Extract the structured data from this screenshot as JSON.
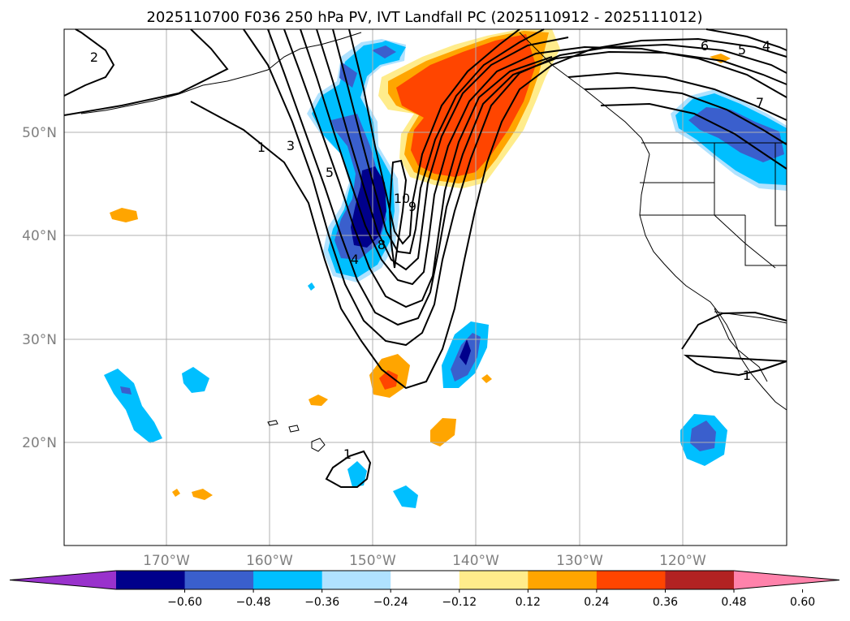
{
  "title": "2025110700 F036 250 hPa PV, IVT Landfall PC (2025110912 - 2025111012)",
  "lat_ticks": [
    "50°N",
    "40°N",
    "30°N",
    "20°N"
  ],
  "lon_ticks": [
    "170°W",
    "160°W",
    "150°W",
    "140°W",
    "130°W",
    "120°W"
  ],
  "colorbar": {
    "ticks": [
      "−0.60",
      "−0.48",
      "−0.36",
      "−0.24",
      "−0.12",
      "0.12",
      "0.24",
      "0.36",
      "0.48",
      "0.60"
    ],
    "colors": [
      "#9932cc",
      "#00008b",
      "#3a5fcd",
      "#00bfff",
      "#b0e2ff",
      "#ffffff",
      "#ffec8b",
      "#ffa500",
      "#ff4500",
      "#b22222",
      "#ff82ab"
    ]
  },
  "contour_labels": [
    "2",
    "1",
    "3",
    "5",
    "10",
    "9",
    "8",
    "4",
    "6",
    "5",
    "4",
    "7",
    "1",
    "1"
  ],
  "colors": {
    "grid": "#b0b0b0",
    "contour": "#000000",
    "neg_dark": "#00008b",
    "neg_mid": "#3a5fcd",
    "neg_light": "#00bfff",
    "neg_pale": "#b0e2ff",
    "pos_pale": "#ffec8b",
    "pos_light": "#ffa500",
    "pos_mid": "#ff4500"
  }
}
